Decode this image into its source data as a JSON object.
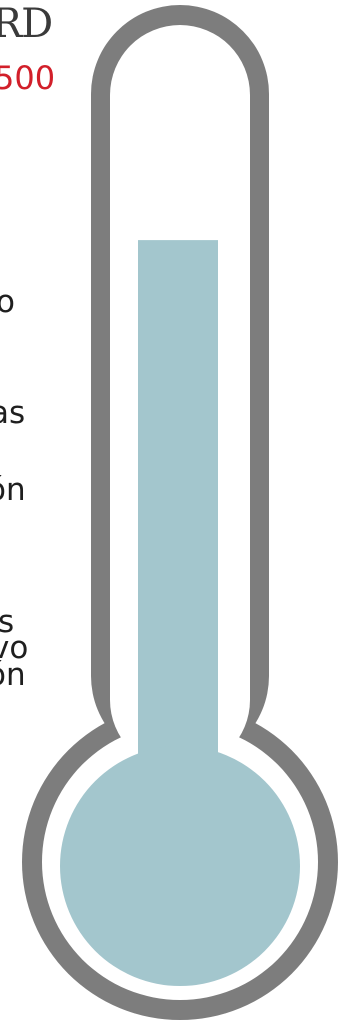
{
  "header": {
    "title": "RD",
    "amount": "500"
  },
  "text_fragments": [
    {
      "id": "fragment-1",
      "text": "o"
    },
    {
      "id": "fragment-2",
      "text": "as"
    },
    {
      "id": "fragment-3",
      "text": "ón"
    },
    {
      "id": "fragment-4",
      "text": "s"
    },
    {
      "id": "fragment-5",
      "text": "vo"
    },
    {
      "id": "fragment-6",
      "text": "ón"
    }
  ],
  "thermometer": {
    "fill_level": 0.73,
    "colors": {
      "outline": "#7d7d7d",
      "glass": "#ffffff",
      "mercury": "#a3c6cd"
    }
  }
}
